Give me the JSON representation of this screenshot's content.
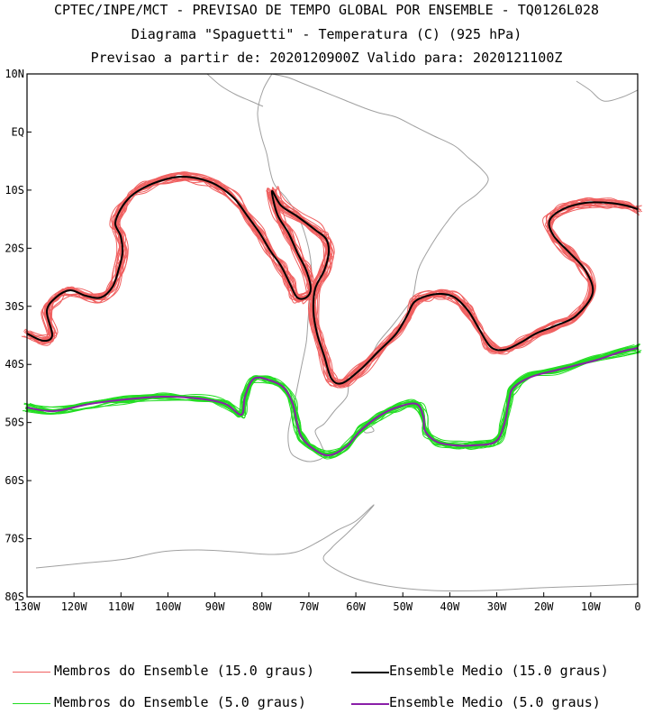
{
  "header": {
    "line1": "CPTEC/INPE/MCT - PREVISAO DE TEMPO GLOBAL POR ENSEMBLE - TQ0126L028",
    "line2": "Diagrama \"Spaguetti\" - Temperatura (C) (925 hPa)",
    "line3": "Previsao a partir de: 2020120900Z  Valido para: 2020121100Z"
  },
  "map": {
    "lon_range": [
      -130,
      0
    ],
    "lat_range": [
      -80,
      10
    ],
    "lon_ticks": [
      "130W",
      "120W",
      "110W",
      "100W",
      "90W",
      "80W",
      "70W",
      "60W",
      "50W",
      "40W",
      "30W",
      "20W",
      "10W",
      "0"
    ],
    "lat_ticks": [
      "10N",
      "EQ",
      "10S",
      "20S",
      "30S",
      "40S",
      "50S",
      "60S",
      "70S",
      "80S"
    ],
    "colors": {
      "coast": "#a0a0a0",
      "member15": "#f06060",
      "mean15": "#000000",
      "member5": "#22dd22",
      "mean5": "#8a1fa8"
    }
  },
  "legend": {
    "member15": "Membros do Ensemble (15.0 graus)",
    "mean15": "Ensemble Medio (15.0 graus)",
    "member5": "Membros do Ensemble (5.0 graus)",
    "mean5": "Ensemble Medio (5.0 graus)"
  }
}
